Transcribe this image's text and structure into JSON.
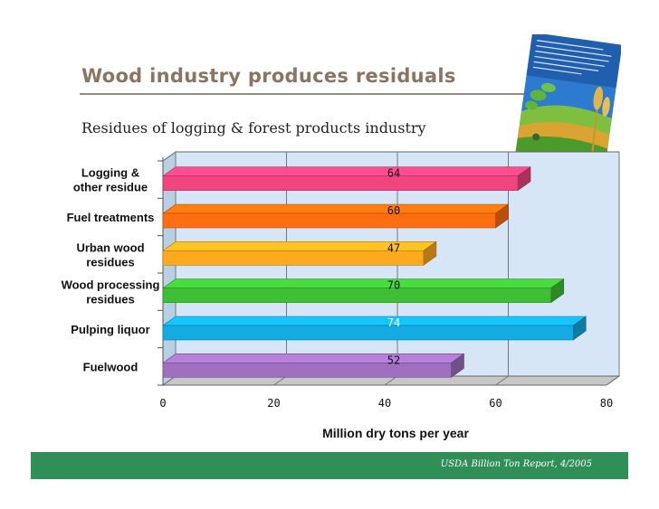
{
  "slide": {
    "title": "Wood industry produces residuals",
    "subtitle": "Residues of logging & forest products industry",
    "source": "USDA Billion Ton Report, 4/2005"
  },
  "colors": {
    "title": "#8a7562",
    "footer": "#2f8f57",
    "plot_back": "#d6e6f6"
  },
  "chart_data": {
    "type": "bar",
    "orientation": "horizontal",
    "categories": [
      [
        "Logging &",
        "other residue"
      ],
      [
        "Fuel treatments"
      ],
      [
        "Urban wood",
        "residues"
      ],
      [
        "Wood processing",
        "residues"
      ],
      [
        "Pulping liquor"
      ],
      [
        "Fuelwood"
      ]
    ],
    "values": [
      64,
      60,
      47,
      70,
      74,
      52
    ],
    "value_labels": [
      "64",
      "60",
      "47",
      "70",
      "74",
      "52"
    ],
    "bar_colors": [
      "#f0457f",
      "#ff6e10",
      "#ffaa1e",
      "#3fbf35",
      "#14abe3",
      "#9f6fc0"
    ],
    "value_label_colors": [
      "#111111",
      "#111111",
      "#111111",
      "#111111",
      "#ffffff",
      "#111111"
    ],
    "xlim": [
      0,
      80
    ],
    "xticks": [
      "0",
      "20",
      "40",
      "60",
      "80"
    ],
    "xlabel": "Million dry tons per year",
    "grid": true,
    "legend": "none"
  }
}
